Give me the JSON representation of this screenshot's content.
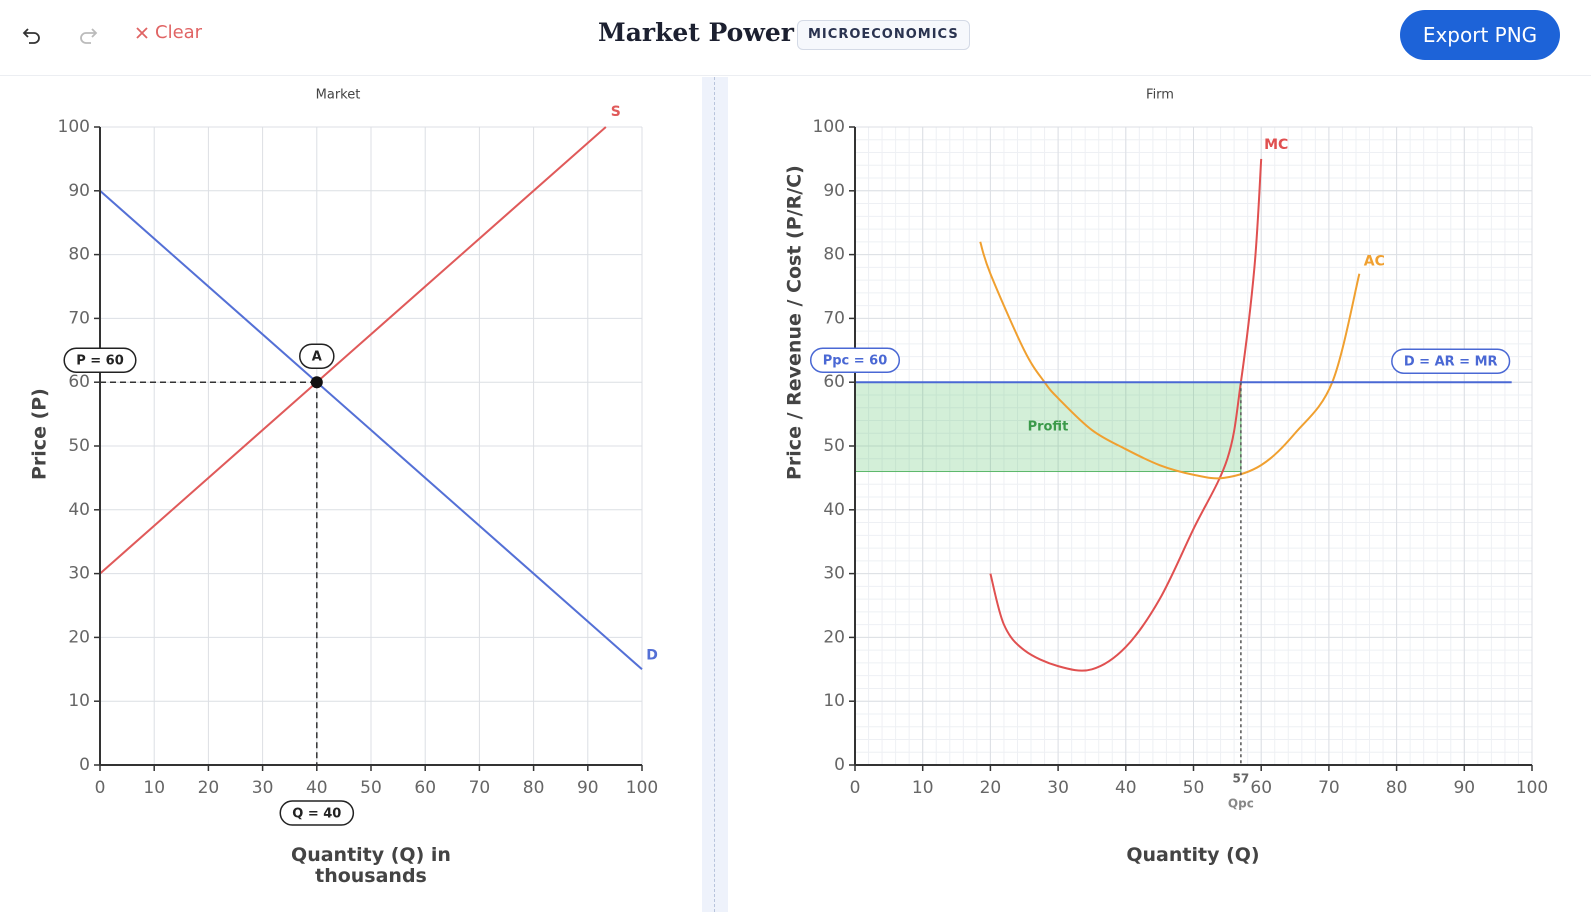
{
  "header": {
    "clear": "Clear",
    "title": "Market Power",
    "badge": "MICROECONOMICS",
    "export": "Export PNG"
  },
  "chart_data": [
    {
      "type": "line",
      "title": "Market",
      "xlabel": "Quantity (Q) in thousands",
      "ylabel": "Price (P)",
      "xlim": [
        0,
        100
      ],
      "ylim": [
        0,
        100
      ],
      "xticks": [
        0,
        10,
        20,
        30,
        40,
        50,
        60,
        70,
        80,
        90,
        100
      ],
      "yticks": [
        0,
        10,
        20,
        30,
        40,
        50,
        60,
        70,
        80,
        90,
        100
      ],
      "grid": true,
      "minor_grid": false,
      "series": [
        {
          "name": "S",
          "color": "#e05a5a",
          "x": [
            0,
            93.33
          ],
          "values": [
            30,
            100
          ]
        },
        {
          "name": "D",
          "color": "#5470d6",
          "x": [
            0,
            100
          ],
          "values": [
            90,
            15
          ]
        }
      ],
      "equilibrium": {
        "label": "A",
        "x": 40,
        "y": 60,
        "x_label": "Q = 40",
        "y_label": "P = 60"
      }
    },
    {
      "type": "line",
      "title": "Firm",
      "xlabel": "Quantity (Q)",
      "ylabel": "Price / Revenue / Cost (P/R/C)",
      "xlim": [
        0,
        100
      ],
      "ylim": [
        0,
        100
      ],
      "xticks": [
        0,
        10,
        20,
        30,
        40,
        50,
        60,
        70,
        80,
        90,
        100
      ],
      "yticks": [
        0,
        10,
        20,
        30,
        40,
        50,
        60,
        70,
        80,
        90,
        100
      ],
      "grid": true,
      "minor_grid": true,
      "series": [
        {
          "name": "MC",
          "color": "#e05050",
          "x": [
            20,
            22,
            25,
            30,
            35,
            40,
            45,
            50,
            55,
            57,
            59,
            60
          ],
          "values": [
            30,
            22,
            18,
            15.5,
            15,
            18.5,
            26,
            37,
            48,
            60,
            78,
            95
          ]
        },
        {
          "name": "AC",
          "color": "#f0a030",
          "x": [
            18.5,
            20,
            25,
            28,
            30,
            35,
            40,
            45,
            50,
            54.5,
            60,
            65,
            70.5,
            74.5
          ],
          "values": [
            82,
            77,
            65,
            60,
            57.5,
            52.5,
            49.5,
            47,
            45.5,
            45,
            47,
            52,
            60,
            77
          ]
        },
        {
          "name": "D = AR = MR",
          "color": "#4a68d4",
          "x": [
            0,
            97
          ],
          "values": [
            60,
            60
          ]
        }
      ],
      "price": {
        "value": 60,
        "label": "Ppc = 60"
      },
      "quantity": {
        "value": 57,
        "label": "Qpc"
      },
      "profit": {
        "label": "Profit",
        "x": [
          0,
          57
        ],
        "y": [
          46,
          60
        ]
      }
    }
  ]
}
